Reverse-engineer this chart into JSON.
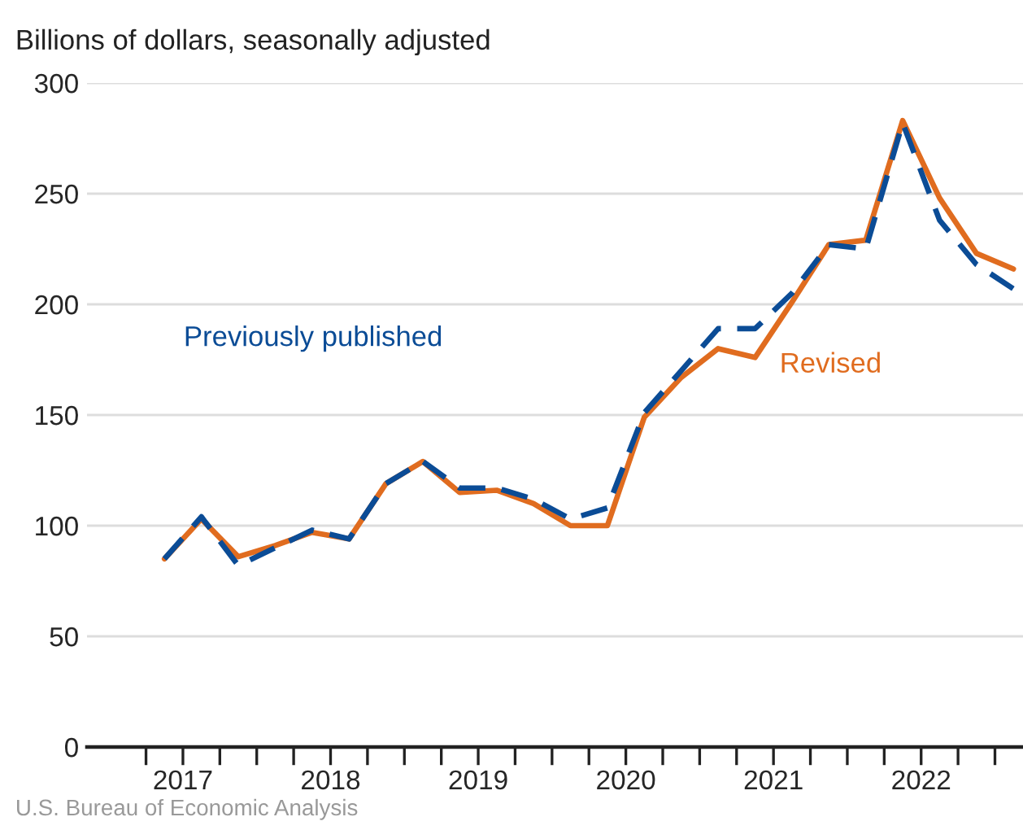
{
  "chart_data": {
    "type": "line",
    "title": "Billions of dollars, seasonally adjusted",
    "x": [
      2017.125,
      2017.375,
      2017.625,
      2017.875,
      2018.125,
      2018.375,
      2018.625,
      2018.875,
      2019.125,
      2019.375,
      2019.625,
      2019.875,
      2020.125,
      2020.375,
      2020.625,
      2020.875,
      2021.125,
      2021.375,
      2021.625,
      2021.875,
      2022.125,
      2022.375,
      2022.625,
      2022.875
    ],
    "series": [
      {
        "name": "Previously published",
        "color": "#0b4c96",
        "line_style": "dashed",
        "values": [
          85,
          104,
          82,
          90,
          98,
          94,
          119,
          129,
          117,
          117,
          112,
          103,
          108,
          151,
          170,
          189,
          189,
          205,
          227,
          225,
          282,
          238,
          218,
          207
        ]
      },
      {
        "name": "Revised",
        "color": "#e06c1f",
        "line_style": "solid",
        "values": [
          85,
          103,
          86,
          91,
          97,
          94,
          119,
          129,
          115,
          116,
          110,
          100,
          100,
          149,
          167,
          180,
          176,
          201,
          227,
          229,
          283,
          248,
          223,
          216
        ]
      }
    ],
    "xlim": [
      2016.6,
      2022.94
    ],
    "xticks": [
      {
        "value": 2017,
        "label": null
      },
      {
        "value": 2017.25,
        "label": "2017"
      },
      {
        "value": 2017.5,
        "label": null
      },
      {
        "value": 2017.75,
        "label": null
      },
      {
        "value": 2018,
        "label": null
      },
      {
        "value": 2018.25,
        "label": "2018"
      },
      {
        "value": 2018.5,
        "label": null
      },
      {
        "value": 2018.75,
        "label": null
      },
      {
        "value": 2019,
        "label": null
      },
      {
        "value": 2019.25,
        "label": "2019"
      },
      {
        "value": 2019.5,
        "label": null
      },
      {
        "value": 2019.75,
        "label": null
      },
      {
        "value": 2020,
        "label": null
      },
      {
        "value": 2020.25,
        "label": "2020"
      },
      {
        "value": 2020.5,
        "label": null
      },
      {
        "value": 2020.75,
        "label": null
      },
      {
        "value": 2021,
        "label": null
      },
      {
        "value": 2021.25,
        "label": "2021"
      },
      {
        "value": 2021.5,
        "label": null
      },
      {
        "value": 2021.75,
        "label": null
      },
      {
        "value": 2022,
        "label": null
      },
      {
        "value": 2022.25,
        "label": "2022"
      },
      {
        "value": 2022.5,
        "label": null
      },
      {
        "value": 2022.75,
        "label": null
      }
    ],
    "ylim": [
      0,
      300
    ],
    "yticks": [
      0,
      50,
      100,
      150,
      200,
      250,
      300
    ],
    "grid": "y",
    "legend": false,
    "marker": "none",
    "annotations": [
      "U.S. Bureau of Economic Analysis"
    ]
  }
}
